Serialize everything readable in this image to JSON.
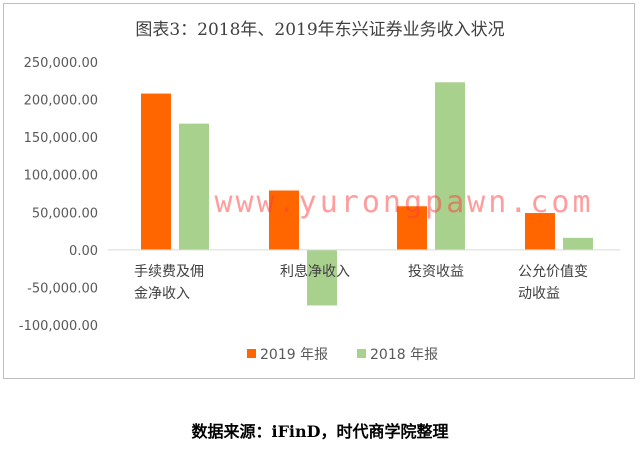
{
  "chart_data": {
    "type": "bar",
    "title": "图表3：2018年、2019年东兴证券业务收入状况",
    "categories": [
      [
        "手续费及佣",
        "金净收入"
      ],
      [
        "利息净收入"
      ],
      [
        "投资收益"
      ],
      [
        "公允价值变",
        "动收益"
      ]
    ],
    "series": [
      {
        "name": "2019 年报",
        "color": "#FF6600",
        "values": [
          208000,
          79000,
          58000,
          49000
        ]
      },
      {
        "name": "2018 年报",
        "color": "#A9D18E",
        "values": [
          168000,
          -74000,
          223000,
          16000
        ]
      }
    ],
    "y_ticks": [
      "250,000.00",
      "200,000.00",
      "150,000.00",
      "100,000.00",
      "50,000.00",
      "0.00",
      "-50,000.00",
      "-100,000.00"
    ],
    "y_tick_values": [
      250000,
      200000,
      150000,
      100000,
      50000,
      0,
      -50000,
      -100000
    ],
    "ylim": [
      -100000,
      250000
    ],
    "grid": false,
    "legend_position": "bottom"
  },
  "watermark": "www.yurongpawn.com",
  "source": "数据来源：iFinD，时代商学院整理"
}
